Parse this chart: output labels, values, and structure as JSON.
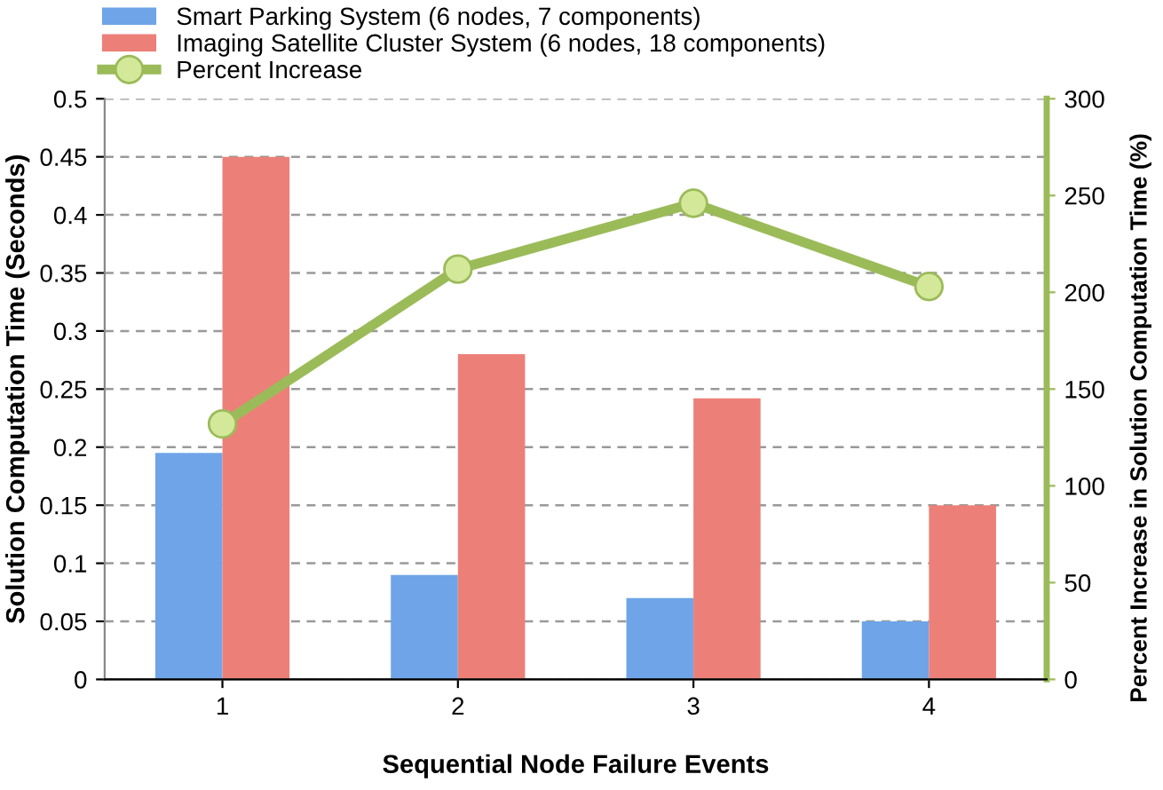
{
  "chart_data": {
    "type": "bar",
    "xlabel": "Sequential Node Failure Events",
    "ylabel": "Solution Computation Time (Seconds)",
    "y2label": "Percent Increase in Solution Computation Time (%)",
    "categories": [
      "1",
      "2",
      "3",
      "4"
    ],
    "series": [
      {
        "name": "Smart Parking System (6 nodes, 7 components)",
        "color": "#6fa5e8",
        "values": [
          0.195,
          0.09,
          0.07,
          0.05
        ]
      },
      {
        "name": "Imaging Satellite Cluster System (6 nodes, 18 components)",
        "color": "#ec8078",
        "values": [
          0.45,
          0.28,
          0.242,
          0.15
        ]
      },
      {
        "name": "Percent Increase",
        "type": "line",
        "axis": "y2",
        "color": "#9bbb59",
        "marker": "circle",
        "values": [
          132,
          212,
          246,
          203
        ]
      }
    ],
    "ylim": [
      0,
      0.5
    ],
    "yticks": [
      0,
      0.05,
      0.1,
      0.15,
      0.2,
      0.25,
      0.3,
      0.35,
      0.4,
      0.45,
      0.5
    ],
    "y2lim": [
      0,
      300
    ],
    "y2ticks": [
      0,
      50,
      100,
      150,
      200,
      250,
      300
    ],
    "grid": "y",
    "legend": "top left"
  }
}
